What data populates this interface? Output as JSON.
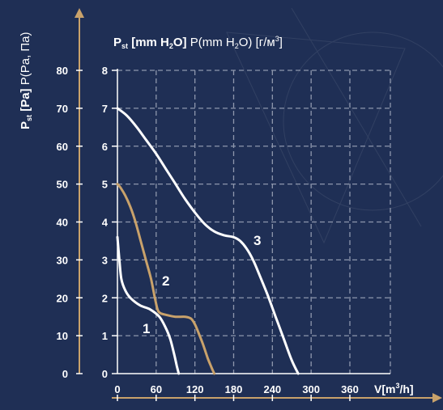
{
  "chart_data": {
    "type": "line",
    "title_bold": "P",
    "title_sub": "st",
    "title_unit_bold": "[mm H",
    "title_unit_sub": "2",
    "title_unit_bold_end": "O]",
    "title_alt": "P(mm H",
    "title_alt_sub": "2",
    "title_alt_end": "O) [г/м",
    "title_alt_sup": "3",
    "title_alt_close": "]",
    "ylabel_left_main": "P",
    "ylabel_left_sub": "st",
    "ylabel_left_bold": "[Pa]",
    "ylabel_left_alt": "P(Pa, Па)",
    "xlabel": "V[m",
    "xlabel_sup": "3",
    "xlabel_end": "/h]",
    "x_ticks": [
      "0",
      "60",
      "120",
      "180",
      "240",
      "300",
      "360"
    ],
    "y_ticks_mm": [
      "0",
      "1",
      "2",
      "3",
      "4",
      "5",
      "6",
      "7",
      "8"
    ],
    "y_ticks_pa": [
      "0",
      "10",
      "20",
      "30",
      "40",
      "50",
      "60",
      "70",
      "80"
    ],
    "xlim": [
      0,
      360
    ],
    "ylim": [
      0,
      8
    ],
    "grid": true,
    "colors": {
      "background": "#1f2f55",
      "accent": "#c9a26b",
      "curve": "#ffffff",
      "grid": "#8e97ad"
    },
    "series": [
      {
        "name": "1",
        "color": "#ffffff",
        "x": [
          0,
          3,
          6,
          12,
          20,
          35,
          50,
          65,
          75,
          82,
          88,
          92,
          95
        ],
        "y": [
          3.6,
          3.0,
          2.5,
          2.2,
          2.0,
          1.8,
          1.7,
          1.5,
          1.2,
          0.9,
          0.5,
          0.2,
          0
        ]
      },
      {
        "name": "2",
        "color": "#c9a26b",
        "x": [
          0,
          5,
          12,
          20,
          28,
          36,
          44,
          52,
          58,
          62,
          66,
          75,
          90,
          105,
          114,
          120,
          125,
          132,
          140,
          146,
          150
        ],
        "y": [
          5.0,
          4.9,
          4.7,
          4.4,
          4.0,
          3.5,
          3.0,
          2.5,
          2.0,
          1.7,
          1.6,
          1.55,
          1.5,
          1.5,
          1.45,
          1.3,
          1.1,
          0.8,
          0.4,
          0.15,
          0
        ]
      },
      {
        "name": "3",
        "color": "#ffffff",
        "x": [
          0,
          15,
          30,
          45,
          60,
          75,
          90,
          105,
          120,
          135,
          150,
          165,
          180,
          190,
          200,
          210,
          220,
          232,
          245,
          258,
          270,
          280
        ],
        "y": [
          7.0,
          6.8,
          6.5,
          6.15,
          5.8,
          5.4,
          5.0,
          4.6,
          4.25,
          3.95,
          3.75,
          3.65,
          3.6,
          3.5,
          3.3,
          3.0,
          2.6,
          2.1,
          1.5,
          0.9,
          0.35,
          0
        ]
      }
    ],
    "annotations": [
      "1",
      "2",
      "3"
    ]
  }
}
